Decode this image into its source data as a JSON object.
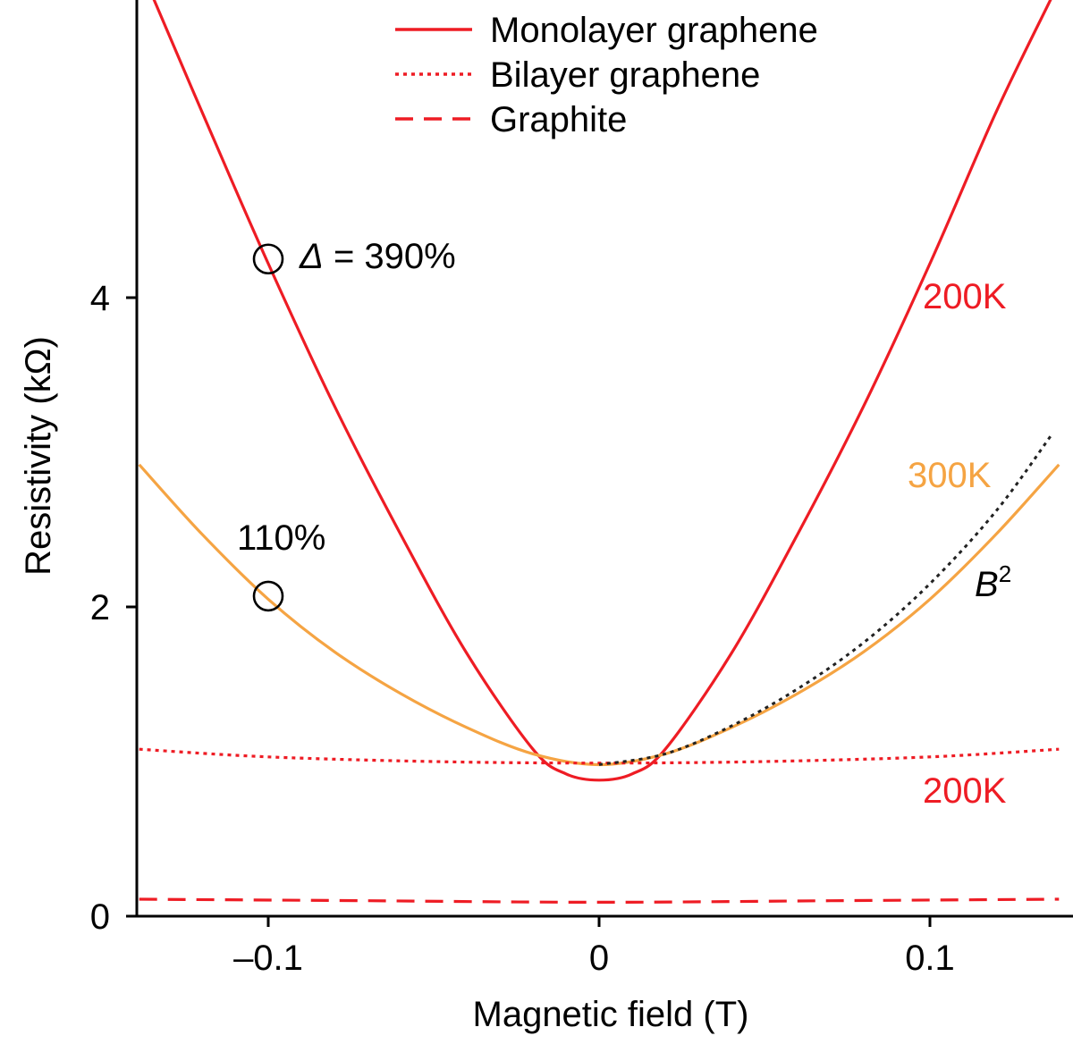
{
  "chart_data": {
    "type": "line",
    "xlabel": "Magnetic field (T)",
    "ylabel": "Resistivity (kΩ)",
    "xlim": [
      -0.139,
      0.139
    ],
    "ylim": [
      0,
      5.95
    ],
    "xticks": [
      -0.1,
      0,
      0.1
    ],
    "xtick_labels": [
      "–0.1",
      "0",
      "0.1"
    ],
    "yticks": [
      0,
      2,
      4
    ],
    "ytick_labels": [
      "0",
      "2",
      "4"
    ],
    "grid": false,
    "legend_position": "top-center",
    "legend": [
      {
        "label": "Monolayer graphene",
        "style": "solid",
        "color": "#ee1c24"
      },
      {
        "label": "Bilayer graphene",
        "style": "dotted",
        "color": "#ee1c24"
      },
      {
        "label": "Graphite",
        "style": "dashed",
        "color": "#ee1c24"
      }
    ],
    "series": [
      {
        "style": "solid",
        "color": "#ee1c24",
        "x": [
          -0.135,
          -0.12,
          -0.1,
          -0.08,
          -0.06,
          -0.04,
          -0.02,
          -0.01,
          0,
          0.01,
          0.02,
          0.04,
          0.06,
          0.08,
          0.1,
          0.12,
          0.137
        ],
        "y": [
          5.95,
          5.2,
          4.22,
          3.3,
          2.47,
          1.7,
          1.08,
          0.92,
          0.88,
          0.92,
          1.08,
          1.7,
          2.47,
          3.3,
          4.22,
          5.2,
          5.95
        ]
      },
      {
        "style": "solid",
        "color": "#f5a443",
        "x": [
          -0.139,
          -0.12,
          -0.1,
          -0.08,
          -0.06,
          -0.04,
          -0.02,
          0,
          0.02,
          0.04,
          0.06,
          0.08,
          0.1,
          0.12,
          0.139
        ],
        "y": [
          2.92,
          2.47,
          2.05,
          1.71,
          1.44,
          1.22,
          1.05,
          0.98,
          1.05,
          1.22,
          1.44,
          1.71,
          2.05,
          2.47,
          2.92
        ]
      },
      {
        "style": "dotted",
        "color": "#ee1c24",
        "x": [
          -0.139,
          -0.1,
          -0.05,
          0,
          0.05,
          0.1,
          0.139
        ],
        "y": [
          1.08,
          1.03,
          1.0,
          0.99,
          1.0,
          1.03,
          1.08
        ]
      },
      {
        "style": "dashed",
        "color": "#ee1c24",
        "x": [
          -0.139,
          -0.07,
          0,
          0.07,
          0.139
        ],
        "y": [
          0.11,
          0.1,
          0.09,
          0.1,
          0.11
        ]
      },
      {
        "style": "dotted",
        "color": "#222222",
        "x": [
          0,
          0.02,
          0.04,
          0.06,
          0.08,
          0.1,
          0.12,
          0.137
        ],
        "y": [
          0.98,
          1.05,
          1.23,
          1.47,
          1.77,
          2.15,
          2.62,
          3.12
        ]
      }
    ],
    "markers": [
      {
        "x": -0.1,
        "y": 4.25
      },
      {
        "x": -0.1,
        "y": 2.07
      }
    ],
    "annotations": {
      "delta_symbol": "Δ",
      "delta_text": " = 390%",
      "pct_110": "110%",
      "label_200k_top": "200K",
      "label_300k": "300K",
      "label_b2_base": "B",
      "label_b2_exp": "2",
      "label_200k_bottom": "200K"
    },
    "colors": {
      "red": "#ee1c24",
      "orange": "#f5a443",
      "black": "#000000"
    }
  }
}
